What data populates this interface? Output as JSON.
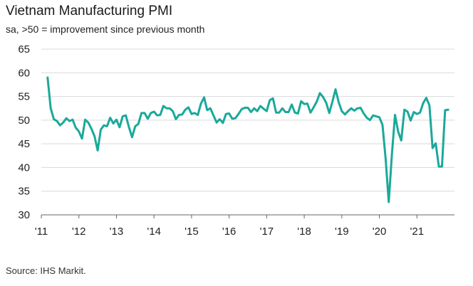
{
  "title": "Vietnam Manufacturing PMI",
  "subtitle": "sa, >50 = improvement since previous month",
  "source": "Source: IHS Markit.",
  "colors": {
    "line": "#1aa99a",
    "grid": "#d9d9d9",
    "axis": "#666666"
  },
  "chart_data": {
    "type": "line",
    "title": "Vietnam Manufacturing PMI",
    "subtitle": "sa, >50 = improvement since previous month",
    "xlabel": "",
    "ylabel": "",
    "ylim": [
      30,
      65
    ],
    "xlim": [
      "2011-01",
      "2021-12"
    ],
    "yticks": [
      30,
      35,
      40,
      45,
      50,
      55,
      60,
      65
    ],
    "xticks": [
      {
        "label": "'11",
        "x": "2011-01"
      },
      {
        "label": "'12",
        "x": "2012-01"
      },
      {
        "label": "'13",
        "x": "2013-01"
      },
      {
        "label": "'14",
        "x": "2014-01"
      },
      {
        "label": "'15",
        "x": "2015-01"
      },
      {
        "label": "'16",
        "x": "2016-01"
      },
      {
        "label": "'17",
        "x": "2017-01"
      },
      {
        "label": "'18",
        "x": "2018-01"
      },
      {
        "label": "'19",
        "x": "2019-01"
      },
      {
        "label": "'20",
        "x": "2020-01"
      },
      {
        "label": "'21",
        "x": "2021-01"
      }
    ],
    "grid": "horizontal",
    "legend": "none",
    "series": [
      {
        "x": [
          "2011-03",
          "2011-04",
          "2011-05",
          "2011-06",
          "2011-07",
          "2011-08",
          "2011-09",
          "2011-10",
          "2011-11",
          "2011-12",
          "2012-01",
          "2012-02",
          "2012-03",
          "2012-04",
          "2012-05",
          "2012-06",
          "2012-07",
          "2012-08",
          "2012-09",
          "2012-10",
          "2012-11",
          "2012-12",
          "2013-01",
          "2013-02",
          "2013-03",
          "2013-04",
          "2013-05",
          "2013-06",
          "2013-07",
          "2013-08",
          "2013-09",
          "2013-10",
          "2013-11",
          "2013-12",
          "2014-01",
          "2014-02",
          "2014-03",
          "2014-04",
          "2014-05",
          "2014-06",
          "2014-07",
          "2014-08",
          "2014-09",
          "2014-10",
          "2014-11",
          "2014-12",
          "2015-01",
          "2015-02",
          "2015-03",
          "2015-04",
          "2015-05",
          "2015-06",
          "2015-07",
          "2015-08",
          "2015-09",
          "2015-10",
          "2015-11",
          "2015-12",
          "2016-01",
          "2016-02",
          "2016-03",
          "2016-04",
          "2016-05",
          "2016-06",
          "2016-07",
          "2016-08",
          "2016-09",
          "2016-10",
          "2016-11",
          "2016-12",
          "2017-01",
          "2017-02",
          "2017-03",
          "2017-04",
          "2017-05",
          "2017-06",
          "2017-07",
          "2017-08",
          "2017-09",
          "2017-10",
          "2017-11",
          "2017-12",
          "2018-01",
          "2018-02",
          "2018-03",
          "2018-04",
          "2018-05",
          "2018-06",
          "2018-07",
          "2018-08",
          "2018-09",
          "2018-10",
          "2018-11",
          "2018-12",
          "2019-01",
          "2019-02",
          "2019-03",
          "2019-04",
          "2019-05",
          "2019-06",
          "2019-07",
          "2019-08",
          "2019-09",
          "2019-10",
          "2019-11",
          "2019-12",
          "2020-01",
          "2020-02",
          "2020-03",
          "2020-04",
          "2020-05",
          "2020-06",
          "2020-07",
          "2020-08",
          "2020-09",
          "2020-10",
          "2020-11",
          "2020-12",
          "2021-01",
          "2021-02",
          "2021-03",
          "2021-04",
          "2021-05",
          "2021-06",
          "2021-07",
          "2021-08",
          "2021-09",
          "2021-10",
          "2021-11"
        ],
        "values": [
          59.0,
          52.5,
          50.2,
          49.8,
          48.9,
          49.5,
          50.4,
          49.8,
          50.1,
          48.4,
          47.6,
          46.1,
          50.1,
          49.5,
          48.2,
          46.6,
          43.6,
          48.0,
          48.9,
          48.7,
          50.5,
          49.3,
          50.1,
          48.5,
          50.8,
          51.0,
          48.5,
          46.4,
          48.7,
          49.2,
          51.5,
          51.5,
          50.3,
          51.5,
          51.8,
          51.0,
          51.1,
          53.0,
          52.5,
          52.5,
          51.9,
          50.2,
          51.1,
          51.2,
          52.2,
          52.7,
          51.3,
          51.5,
          51.1,
          53.5,
          54.8,
          52.1,
          52.5,
          51.0,
          49.5,
          50.2,
          49.4,
          51.3,
          51.4,
          50.3,
          50.4,
          51.3,
          52.3,
          52.6,
          52.6,
          51.7,
          52.5,
          51.9,
          53.0,
          52.4,
          51.9,
          54.2,
          54.6,
          51.6,
          51.6,
          52.5,
          51.7,
          51.7,
          53.3,
          51.6,
          51.4,
          54.0,
          53.4,
          53.5,
          51.6,
          52.7,
          53.9,
          55.7,
          54.9,
          53.7,
          51.5,
          53.9,
          56.5,
          53.8,
          51.9,
          51.2,
          51.9,
          52.5,
          52.0,
          52.5,
          52.6,
          51.4,
          50.5,
          50.0,
          51.0,
          50.8,
          50.6,
          49.0,
          41.9,
          32.7,
          42.7,
          51.1,
          47.6,
          45.7,
          52.2,
          51.8,
          49.9,
          51.7,
          51.3,
          51.6,
          53.6,
          54.7,
          53.1,
          44.1,
          45.1,
          40.2,
          40.2,
          52.1,
          52.2
        ]
      }
    ]
  }
}
